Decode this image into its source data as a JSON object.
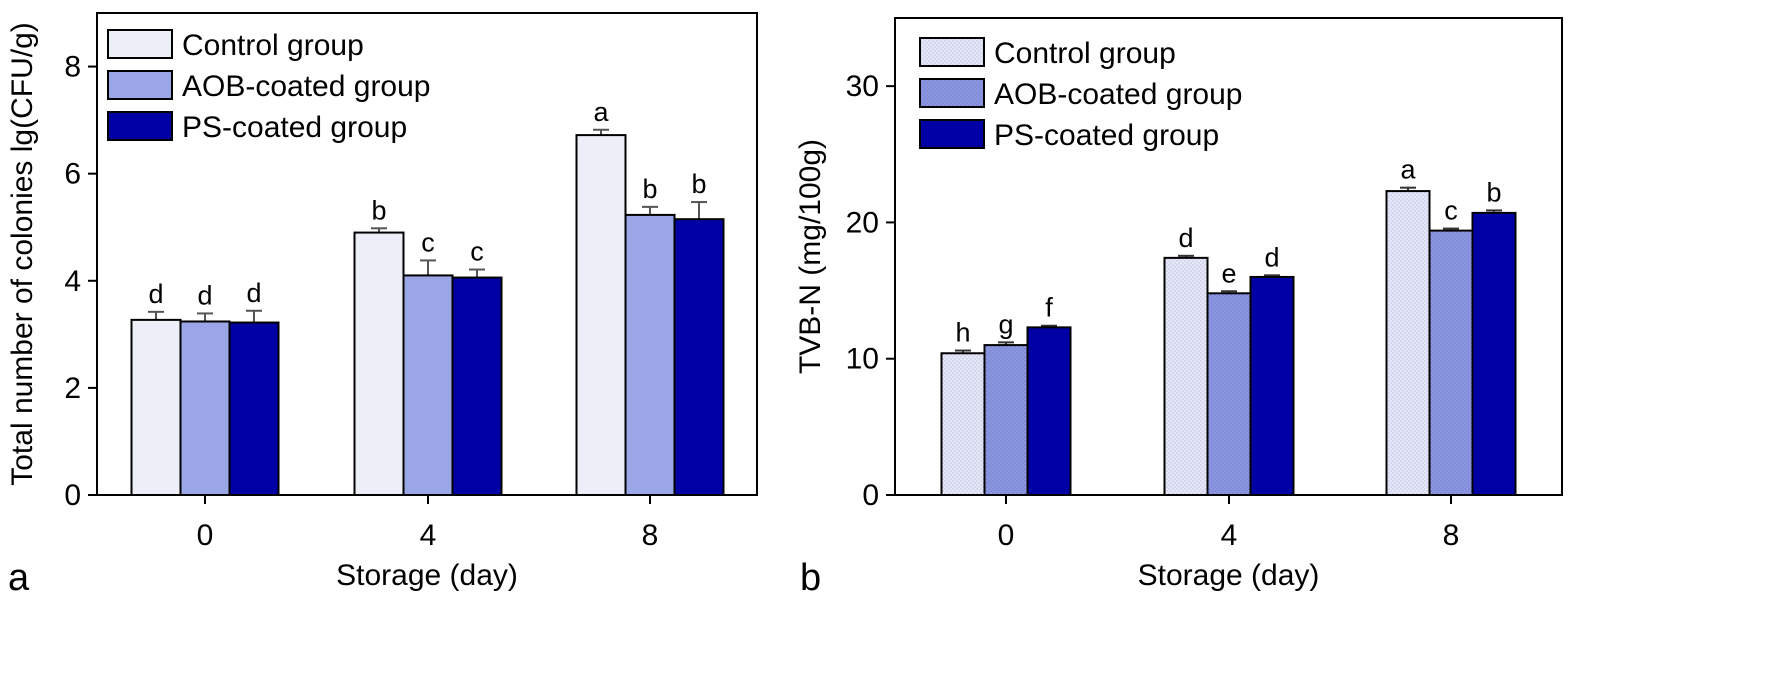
{
  "chart_data": [
    {
      "panel_label": "a",
      "type": "bar",
      "categories": [
        "0",
        "4",
        "8"
      ],
      "xlabel": "Storage (day)",
      "ylabel": "Total number of colonies lg(CFU/g)",
      "ylim": [
        0,
        9
      ],
      "yticks": [
        0,
        2,
        4,
        6,
        8
      ],
      "legend_position": "top-left",
      "grid": false,
      "series": [
        {
          "name": "Control group",
          "color": "#eceef8",
          "values": [
            3.27,
            4.9,
            6.72
          ],
          "errors": [
            0.15,
            0.08,
            0.1
          ],
          "labels": [
            "d",
            "b",
            "a"
          ]
        },
        {
          "name": "AOB-coated group",
          "color": "#9aa6e6",
          "values": [
            3.24,
            4.1,
            5.23
          ],
          "errors": [
            0.15,
            0.28,
            0.15
          ],
          "labels": [
            "d",
            "c",
            "b"
          ]
        },
        {
          "name": "PS-coated group",
          "color": "#0000a5",
          "values": [
            3.22,
            4.06,
            5.15
          ],
          "errors": [
            0.22,
            0.15,
            0.32
          ],
          "labels": [
            "d",
            "c",
            "b"
          ]
        }
      ]
    },
    {
      "panel_label": "b",
      "type": "bar",
      "categories": [
        "0",
        "4",
        "8"
      ],
      "xlabel": "Storage (day)",
      "ylabel": "TVB-N (mg/100g)",
      "ylim": [
        0,
        35
      ],
      "yticks": [
        0,
        10,
        20,
        30
      ],
      "legend_position": "top-left",
      "grid": false,
      "series": [
        {
          "name": "Control group",
          "color": "#e6e8f6",
          "values": [
            10.4,
            17.4,
            22.3
          ],
          "errors": [
            0.2,
            0.15,
            0.25
          ],
          "labels": [
            "h",
            "d",
            "a"
          ]
        },
        {
          "name": "AOB-coated group",
          "color": "#8c97e0",
          "values": [
            11.0,
            14.8,
            19.4
          ],
          "errors": [
            0.2,
            0.15,
            0.15
          ],
          "labels": [
            "g",
            "e",
            "c"
          ]
        },
        {
          "name": "PS-coated group",
          "color": "#0000a5",
          "values": [
            12.3,
            16.0,
            20.7
          ],
          "errors": [
            0.12,
            0.12,
            0.18
          ],
          "labels": [
            "f",
            "d",
            "b"
          ]
        }
      ]
    }
  ]
}
